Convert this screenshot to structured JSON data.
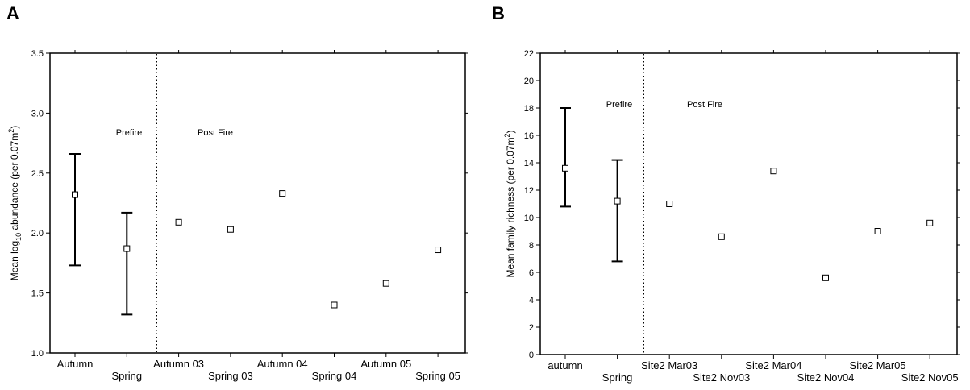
{
  "chart_data": [
    {
      "type": "scatter",
      "panel_label": "A",
      "ylabel_parts": [
        "Mean log",
        "10",
        " abundance (per 0.07m",
        "2",
        ")"
      ],
      "ylim": [
        1.0,
        3.5
      ],
      "yticks": [
        "1.0",
        "1.5",
        "2.0",
        "2.5",
        "3.0",
        "3.5"
      ],
      "categories": [
        "Autumn",
        "Spring",
        "Autumn 03",
        "Spring 03",
        "Autumn 04",
        "Spring 04",
        "Autumn 05",
        "Spring 05"
      ],
      "values": [
        2.32,
        1.87,
        2.09,
        2.03,
        2.33,
        1.4,
        1.58,
        1.86
      ],
      "error_bars": [
        [
          1.73,
          2.66
        ],
        [
          1.32,
          2.17
        ],
        null,
        null,
        null,
        null,
        null,
        null
      ],
      "divider_after_index": 1,
      "annotations": [
        "Prefire",
        "Post Fire"
      ],
      "grid": false
    },
    {
      "type": "scatter",
      "panel_label": "B",
      "ylabel_parts": [
        "Mean family richness (per 0.07m",
        "2",
        ")"
      ],
      "ylim": [
        0,
        22
      ],
      "yticks": [
        "0",
        "2",
        "4",
        "6",
        "8",
        "10",
        "12",
        "14",
        "16",
        "18",
        "20",
        "22"
      ],
      "categories": [
        "autumn",
        "Spring",
        "Site2 Mar03",
        "Site2 Nov03",
        "Site2 Mar04",
        "Site2 Nov04",
        "Site2 Mar05",
        "Site2 Nov05"
      ],
      "values": [
        13.6,
        11.2,
        11.0,
        8.6,
        13.4,
        5.6,
        9.0,
        9.6
      ],
      "error_bars": [
        [
          10.8,
          18.0
        ],
        [
          6.8,
          14.2
        ],
        null,
        null,
        null,
        null,
        null,
        null
      ],
      "divider_after_index": 1,
      "annotations": [
        "Prefire",
        "Post Fire"
      ],
      "grid": false
    }
  ]
}
